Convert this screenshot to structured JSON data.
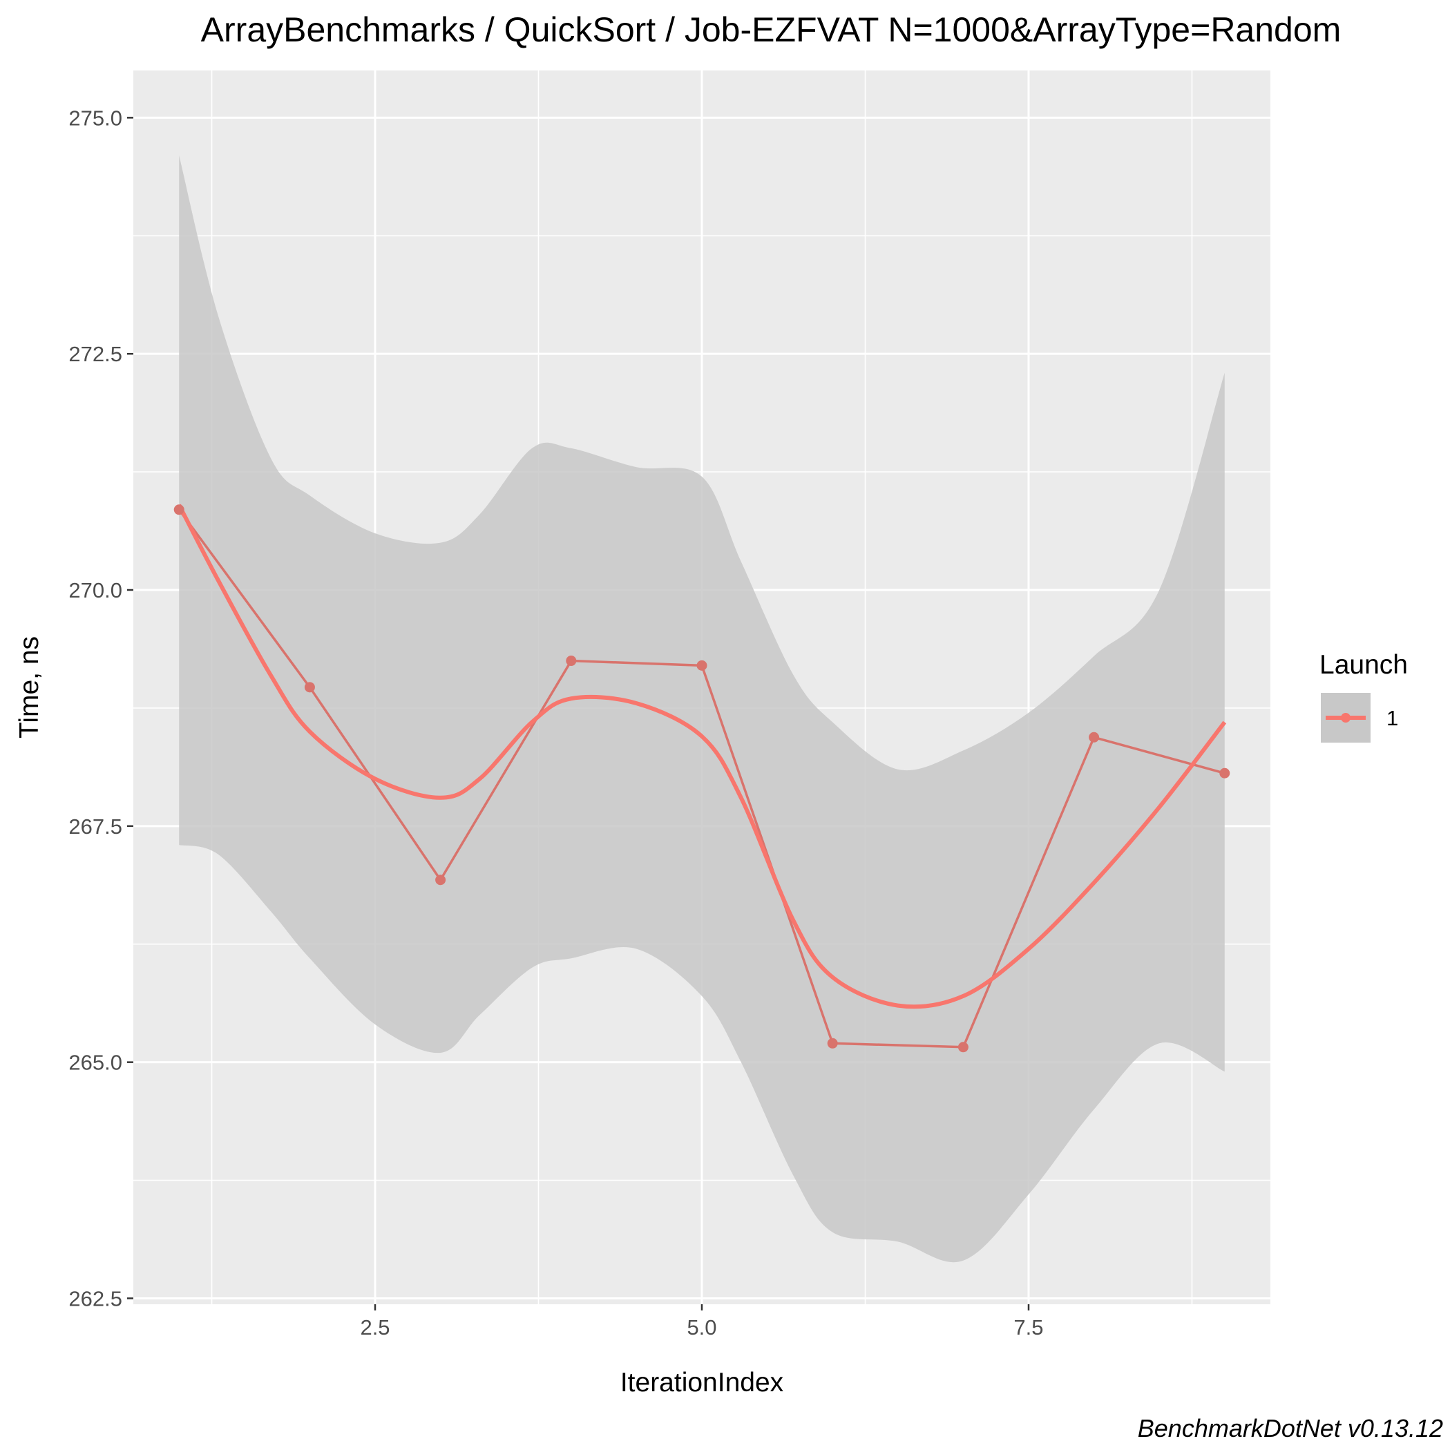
{
  "chart_data": {
    "type": "line",
    "title": "ArrayBenchmarks / QuickSort / Job-EZFVAT N=1000&ArrayType=Random",
    "xlabel": "IterationIndex",
    "ylabel": "Time, ns",
    "caption": "BenchmarkDotNet v0.13.12",
    "xlim": [
      0.65,
      9.35
    ],
    "ylim": [
      262.5,
      275.0
    ],
    "x_ticks": [
      2.5,
      5.0,
      7.5
    ],
    "x_tick_labels": [
      "2.5",
      "5.0",
      "7.5"
    ],
    "y_ticks": [
      262.5,
      265.0,
      267.5,
      270.0,
      272.5,
      275.0
    ],
    "y_tick_labels": [
      "262.5",
      "265.0",
      "267.5",
      "270.0",
      "272.5",
      "275.0"
    ],
    "grid": true,
    "legend": {
      "title": "Launch",
      "position": "right",
      "entries": [
        "1"
      ]
    },
    "colors": {
      "series": "#f8766d",
      "raw_line": "#d9736c",
      "ribbon": "#c8c8c8",
      "panel": "#ebebeb",
      "grid": "#ffffff"
    },
    "series": [
      {
        "name": "1",
        "x": [
          1,
          2,
          3,
          4,
          5,
          6,
          7,
          8,
          9
        ],
        "y": [
          270.85,
          268.97,
          266.93,
          269.25,
          269.2,
          265.2,
          265.16,
          268.44,
          268.06
        ]
      }
    ],
    "smooth": {
      "x": [
        1.0,
        1.3,
        1.7,
        2.0,
        2.5,
        3.0,
        3.3,
        3.7,
        4.0,
        4.5,
        5.0,
        5.3,
        5.7,
        6.0,
        6.5,
        7.0,
        7.5,
        8.0,
        8.5,
        9.0
      ],
      "y": [
        270.9,
        270.1,
        269.1,
        268.5,
        268.0,
        267.8,
        268.0,
        268.6,
        268.85,
        268.8,
        268.45,
        267.8,
        266.5,
        265.9,
        265.6,
        265.7,
        266.2,
        266.9,
        267.7,
        268.6
      ],
      "upper": [
        274.6,
        272.9,
        271.4,
        271.0,
        270.6,
        270.5,
        270.8,
        271.5,
        271.5,
        271.3,
        271.2,
        270.3,
        269.1,
        268.6,
        268.1,
        268.3,
        268.7,
        269.3,
        270.0,
        272.3
      ],
      "lower": [
        267.3,
        267.2,
        266.6,
        266.1,
        265.4,
        265.1,
        265.5,
        266.0,
        266.1,
        266.2,
        265.7,
        265.0,
        263.8,
        263.2,
        263.1,
        262.9,
        263.6,
        264.5,
        265.2,
        264.9
      ]
    }
  }
}
